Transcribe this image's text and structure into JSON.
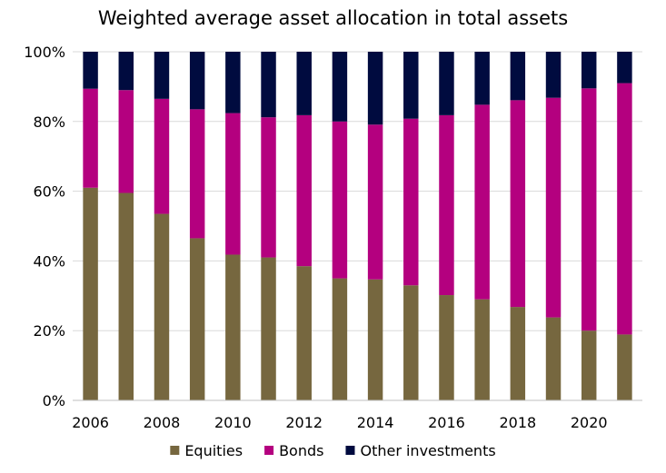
{
  "chart_data": {
    "type": "bar",
    "stacked": true,
    "title": "Weighted average asset allocation in total assets",
    "xlabel": "",
    "ylabel": "",
    "ylim": [
      0,
      100
    ],
    "y_ticks": [
      "0%",
      "20%",
      "40%",
      "60%",
      "80%",
      "100%"
    ],
    "categories": [
      "2006",
      "2007",
      "2008",
      "2009",
      "2010",
      "2011",
      "2012",
      "2013",
      "2014",
      "2015",
      "2016",
      "2017",
      "2018",
      "2019",
      "2020",
      "2021"
    ],
    "x_tick_labels": [
      "2006",
      "2008",
      "2010",
      "2012",
      "2014",
      "2016",
      "2018",
      "2020"
    ],
    "grid": true,
    "legend_position": "bottom",
    "series": [
      {
        "name": "Equities",
        "color": "#76673f",
        "values": [
          61.0,
          59.5,
          53.5,
          46.5,
          41.8,
          41.0,
          38.5,
          35.0,
          34.7,
          33.0,
          30.2,
          29.0,
          26.8,
          23.8,
          20.0,
          18.9
        ]
      },
      {
        "name": "Bonds",
        "color": "#b4007f",
        "values": [
          28.4,
          29.5,
          33.0,
          37.0,
          40.6,
          40.2,
          43.3,
          45.0,
          44.4,
          47.8,
          51.6,
          55.8,
          59.3,
          63.0,
          69.5,
          72.1
        ]
      },
      {
        "name": "Other investments",
        "color": "#000b3f",
        "values": [
          10.6,
          11.0,
          13.5,
          16.5,
          17.6,
          18.8,
          18.2,
          20.0,
          20.9,
          19.2,
          18.2,
          15.2,
          13.9,
          13.2,
          10.5,
          9.0
        ]
      }
    ]
  }
}
